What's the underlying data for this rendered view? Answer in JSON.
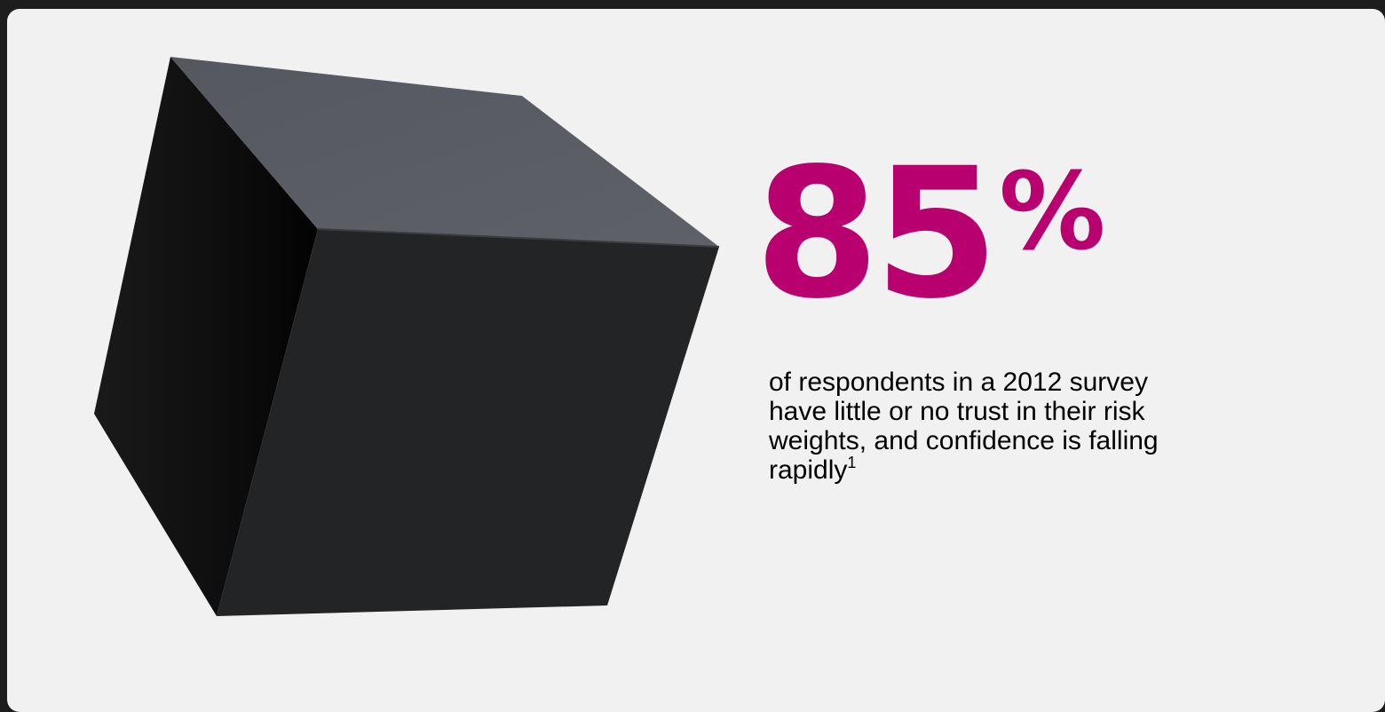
{
  "stat": {
    "value": "85",
    "unit": "%",
    "caption": "of respondents in a 2012 survey have little or no trust in their risk weights, and confidence is falling rapidly",
    "footnote_marker": "1"
  },
  "colors": {
    "background": "#f1f1f1",
    "frame": "#1d1d1d",
    "accent": "#b8006e",
    "cube_top": "#5b5e64",
    "cube_front": "#232426",
    "cube_side": "#0e0e0f"
  },
  "graphic": {
    "icon": "black-cube-icon"
  }
}
